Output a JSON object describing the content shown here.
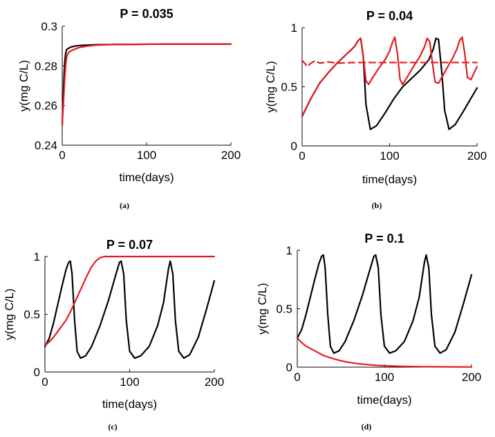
{
  "chart_data": [
    {
      "type": "line",
      "panel": "a",
      "title": "P = 0.035",
      "caption": "(a)",
      "xlabel": "time(days)",
      "ylabel": "y(mg C/L)",
      "xlim": [
        0,
        200
      ],
      "ylim": [
        0.24,
        0.3
      ],
      "xticks": [
        0,
        100,
        200
      ],
      "xtick_labels": [
        "0",
        "100",
        "200"
      ],
      "yticks": [
        0.24,
        0.26,
        0.28,
        0.3
      ],
      "ytick_labels": [
        "0.24",
        "0.26",
        "0.28",
        "0.3"
      ],
      "series": [
        {
          "name": "black",
          "color": "#000000",
          "style": "solid",
          "x": [
            0,
            1,
            2,
            3,
            4,
            5,
            6,
            8,
            10,
            15,
            20,
            30,
            40,
            60,
            80,
            120,
            160,
            200
          ],
          "y": [
            0.25,
            0.262,
            0.274,
            0.282,
            0.286,
            0.288,
            0.2885,
            0.289,
            0.2895,
            0.29,
            0.2903,
            0.2905,
            0.2907,
            0.2908,
            0.2909,
            0.291,
            0.291,
            0.291
          ]
        },
        {
          "name": "red",
          "color": "#e41a1c",
          "style": "solid",
          "x": [
            0,
            1,
            2,
            3,
            4,
            5,
            6,
            8,
            10,
            15,
            20,
            30,
            40,
            60,
            80,
            120,
            160,
            200
          ],
          "y": [
            0.25,
            0.258,
            0.266,
            0.274,
            0.28,
            0.284,
            0.2855,
            0.287,
            0.2875,
            0.2885,
            0.2893,
            0.29,
            0.2905,
            0.2908,
            0.2909,
            0.291,
            0.291,
            0.291
          ]
        }
      ]
    },
    {
      "type": "line",
      "panel": "b",
      "title": "P = 0.04",
      "caption": "(b)",
      "xlabel": "time(days)",
      "ylabel": "y(mg C/L)",
      "xlim": [
        0,
        200
      ],
      "ylim": [
        0,
        1
      ],
      "xticks": [
        0,
        100,
        200
      ],
      "xtick_labels": [
        "0",
        "100",
        "200"
      ],
      "yticks": [
        0,
        0.5,
        1
      ],
      "ytick_labels": [
        "0",
        "0.5",
        "1"
      ],
      "series": [
        {
          "name": "black",
          "color": "#000000",
          "style": "solid",
          "x": [
            0,
            10,
            20,
            30,
            40,
            50,
            60,
            64,
            67,
            70,
            73,
            78,
            85,
            95,
            105,
            115,
            125,
            135,
            145,
            150,
            153,
            156,
            160,
            163,
            168,
            175,
            185,
            200
          ],
          "y": [
            0.25,
            0.4,
            0.53,
            0.62,
            0.7,
            0.77,
            0.84,
            0.89,
            0.91,
            0.75,
            0.35,
            0.14,
            0.17,
            0.28,
            0.4,
            0.5,
            0.57,
            0.64,
            0.73,
            0.82,
            0.91,
            0.9,
            0.6,
            0.3,
            0.14,
            0.18,
            0.3,
            0.49
          ]
        },
        {
          "name": "red",
          "color": "#e41a1c",
          "style": "solid",
          "x": [
            0,
            10,
            20,
            30,
            40,
            50,
            60,
            64,
            67,
            70,
            73,
            76,
            80,
            88,
            95,
            100,
            103,
            106,
            109,
            112,
            115,
            120,
            128,
            135,
            140,
            143,
            146,
            149,
            152,
            156,
            165,
            172,
            177,
            180,
            183,
            186,
            189,
            193,
            200
          ],
          "y": [
            0.25,
            0.4,
            0.53,
            0.62,
            0.7,
            0.77,
            0.84,
            0.89,
            0.91,
            0.75,
            0.55,
            0.52,
            0.57,
            0.66,
            0.73,
            0.8,
            0.87,
            0.92,
            0.78,
            0.56,
            0.52,
            0.58,
            0.68,
            0.76,
            0.84,
            0.91,
            0.88,
            0.7,
            0.54,
            0.53,
            0.65,
            0.74,
            0.82,
            0.89,
            0.92,
            0.78,
            0.58,
            0.56,
            0.67
          ]
        },
        {
          "name": "red-dashed",
          "color": "#e41a1c",
          "style": "dashed",
          "x": [
            0,
            3,
            6,
            10,
            15,
            20,
            30,
            40,
            60,
            80,
            100,
            130,
            160,
            200
          ],
          "y": [
            0.72,
            0.7,
            0.67,
            0.7,
            0.72,
            0.7,
            0.71,
            0.7,
            0.705,
            0.705,
            0.705,
            0.705,
            0.705,
            0.705
          ]
        }
      ]
    },
    {
      "type": "line",
      "panel": "c",
      "title": "P = 0.07",
      "caption": "(c)",
      "xlabel": "time(days)",
      "ylabel": "y(mg C/L)",
      "xlim": [
        0,
        200
      ],
      "ylim": [
        0,
        1
      ],
      "xticks": [
        0,
        100,
        200
      ],
      "xtick_labels": [
        "0",
        "100",
        "200"
      ],
      "yticks": [
        0,
        0.5,
        1
      ],
      "ytick_labels": [
        "0",
        "0.5",
        "1"
      ],
      "series": [
        {
          "name": "black",
          "color": "#000000",
          "style": "solid",
          "x": [
            0,
            5,
            10,
            15,
            20,
            25,
            28,
            30,
            32,
            35,
            38,
            42,
            48,
            55,
            65,
            75,
            82,
            86,
            88,
            90,
            93,
            96,
            100,
            106,
            113,
            123,
            133,
            140,
            144,
            146,
            148,
            151,
            154,
            158,
            164,
            171,
            181,
            191,
            200
          ],
          "y": [
            0.22,
            0.29,
            0.42,
            0.58,
            0.74,
            0.89,
            0.95,
            0.96,
            0.85,
            0.45,
            0.18,
            0.12,
            0.14,
            0.22,
            0.4,
            0.62,
            0.8,
            0.9,
            0.95,
            0.96,
            0.85,
            0.45,
            0.18,
            0.12,
            0.14,
            0.22,
            0.4,
            0.6,
            0.8,
            0.9,
            0.96,
            0.85,
            0.45,
            0.18,
            0.12,
            0.15,
            0.3,
            0.55,
            0.79
          ]
        },
        {
          "name": "red",
          "color": "#e41a1c",
          "style": "solid",
          "x": [
            0,
            5,
            10,
            15,
            20,
            25,
            30,
            35,
            40,
            45,
            50,
            55,
            60,
            65,
            70,
            75,
            80,
            100,
            150,
            200
          ],
          "y": [
            0.23,
            0.26,
            0.3,
            0.35,
            0.4,
            0.45,
            0.52,
            0.6,
            0.68,
            0.76,
            0.84,
            0.91,
            0.96,
            0.99,
            1.0,
            1.0,
            1.0,
            1.0,
            1.0,
            1.0
          ]
        }
      ]
    },
    {
      "type": "line",
      "panel": "d",
      "title": "P = 0.1",
      "caption": "(d)",
      "xlabel": "time(days)",
      "ylabel": "y(mg C/L)",
      "xlim": [
        0,
        200
      ],
      "ylim": [
        0,
        1
      ],
      "xticks": [
        0,
        100,
        200
      ],
      "xtick_labels": [
        "0",
        "100",
        "200"
      ],
      "yticks": [
        0,
        0.5,
        1
      ],
      "ytick_labels": [
        "0",
        "0.5",
        "1"
      ],
      "series": [
        {
          "name": "black",
          "color": "#000000",
          "style": "solid",
          "x": [
            0,
            5,
            10,
            15,
            20,
            25,
            28,
            30,
            32,
            35,
            38,
            42,
            48,
            55,
            65,
            75,
            82,
            86,
            88,
            90,
            93,
            96,
            100,
            106,
            113,
            123,
            133,
            140,
            144,
            146,
            148,
            151,
            154,
            158,
            164,
            171,
            181,
            191,
            200
          ],
          "y": [
            0.25,
            0.32,
            0.45,
            0.6,
            0.75,
            0.89,
            0.95,
            0.96,
            0.85,
            0.45,
            0.18,
            0.12,
            0.14,
            0.22,
            0.4,
            0.62,
            0.8,
            0.9,
            0.95,
            0.96,
            0.85,
            0.45,
            0.18,
            0.12,
            0.14,
            0.22,
            0.4,
            0.6,
            0.8,
            0.9,
            0.96,
            0.85,
            0.45,
            0.18,
            0.12,
            0.15,
            0.3,
            0.55,
            0.79
          ]
        },
        {
          "name": "red",
          "color": "#e41a1c",
          "style": "solid",
          "x": [
            0,
            5,
            10,
            20,
            30,
            40,
            50,
            60,
            70,
            80,
            90,
            100,
            120,
            140,
            160,
            180,
            200
          ],
          "y": [
            0.25,
            0.21,
            0.18,
            0.14,
            0.1,
            0.075,
            0.055,
            0.04,
            0.03,
            0.022,
            0.016,
            0.012,
            0.007,
            0.004,
            0.003,
            0.002,
            0.001
          ]
        }
      ]
    }
  ]
}
